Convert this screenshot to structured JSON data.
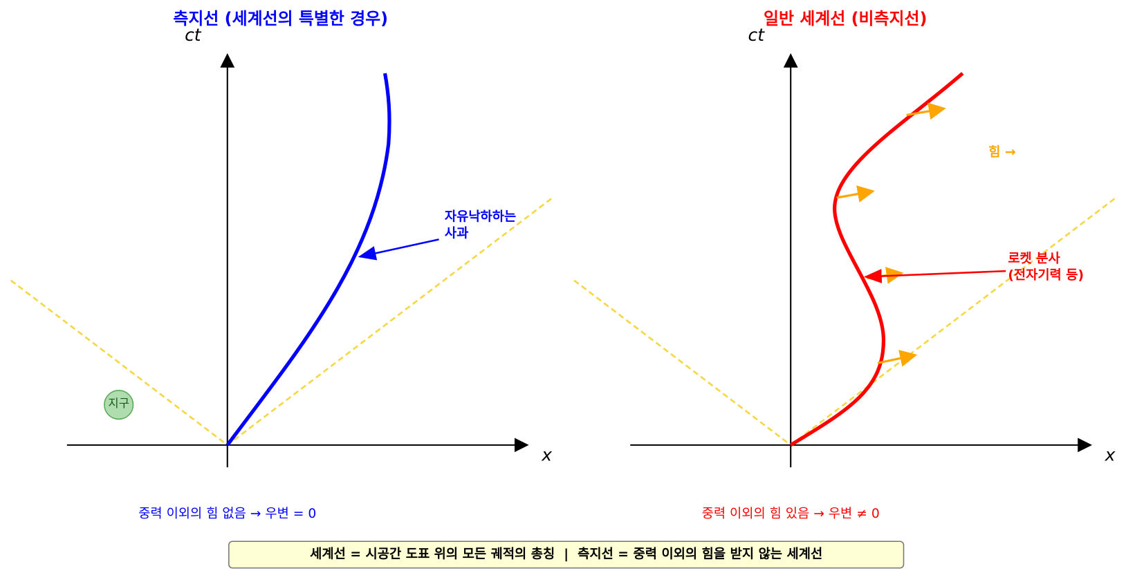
{
  "panels": [
    {
      "title": "측지선 (세계선의 특별한 경우)",
      "y_axis_label": "ct",
      "x_axis_label": "x",
      "annotation": [
        "자유낙하하는",
        "사과"
      ],
      "body_label": "지구",
      "caption": "중력 이외의 힘 없음 → 우변 = 0"
    },
    {
      "title": "일반 세계선 (비측지선)",
      "y_axis_label": "ct",
      "x_axis_label": "x",
      "force_label": "힘 →",
      "annotation": [
        "로켓 분사",
        "(전자기력 등)"
      ],
      "caption": "중력 이외의 힘 있음 → 우변 ≠ 0"
    }
  ],
  "footer": "세계선 = 시공간 도표 위의 모든 궤적의 총칭  |  측지선 = 중력 이외의 힘을 받지 않는 세계선"
}
